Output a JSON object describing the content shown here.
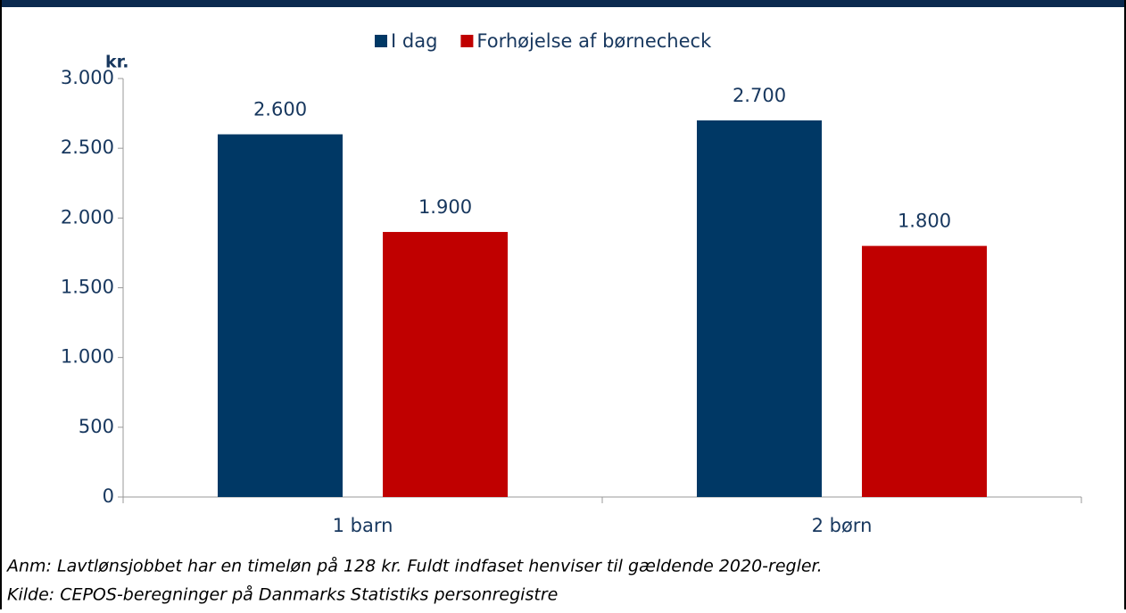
{
  "chart_data": {
    "type": "bar",
    "y_axis_label": "kr.",
    "categories": [
      "1 barn",
      "2 børn"
    ],
    "series": [
      {
        "name": "I dag",
        "color": "#003865",
        "values": [
          2600,
          2700
        ],
        "value_labels": [
          "2.600",
          "2.700"
        ]
      },
      {
        "name": "Forhøjelse af børnecheck",
        "color": "#c00000",
        "values": [
          1900,
          1800
        ],
        "value_labels": [
          "1.900",
          "1.800"
        ]
      }
    ],
    "ylim": [
      0,
      3000
    ],
    "yticks": [
      0,
      500,
      {
        "value": 1000,
        "label": "1.000"
      },
      {
        "value": 1500,
        "label": "1.500"
      },
      {
        "value": 2000,
        "label": "2.000"
      },
      {
        "value": 2500,
        "label": "2.500"
      },
      {
        "value": 3000,
        "label": "3.000"
      }
    ],
    "legend": "top",
    "notes": [
      "Anm: Lavtlønsjobbet har en timeløn på 128 kr. Fuldt indfaset henviser til gældende 2020-regler.",
      "Kilde: CEPOS-beregninger på Danmarks Statistiks personregistre"
    ]
  }
}
